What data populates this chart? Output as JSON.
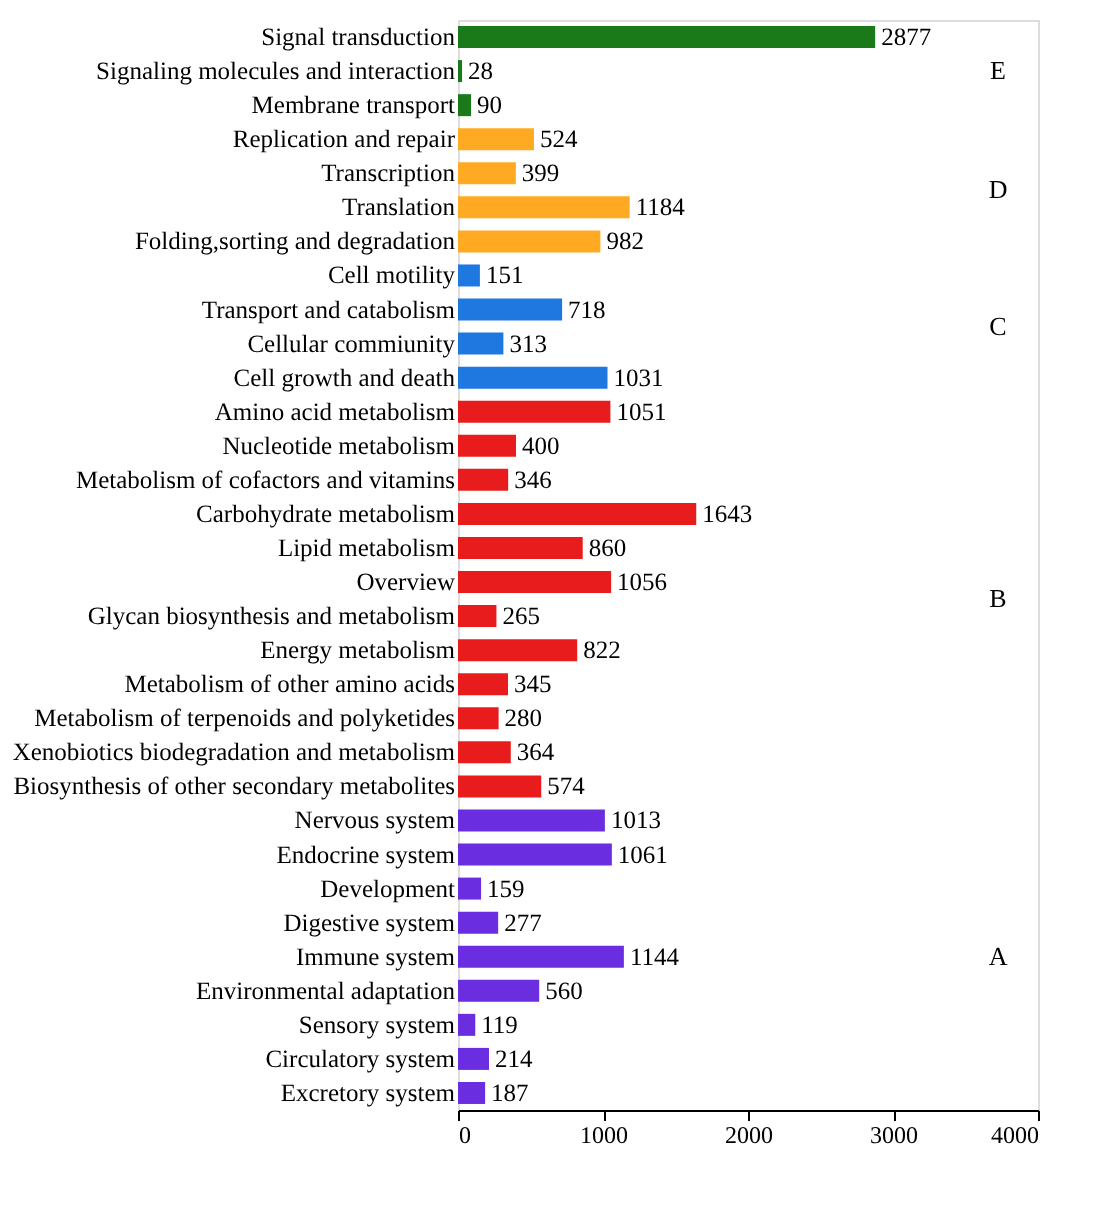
{
  "chart_data": {
    "type": "bar",
    "orientation": "horizontal",
    "categories": [
      "Signal transduction",
      "Signaling molecules and interaction",
      "Membrane transport",
      "Replication and repair",
      "Transcription",
      "Translation",
      "Folding,sorting and degradation",
      "Cell motility",
      "Transport and catabolism",
      "Cellular commiunity",
      "Cell growth and death",
      "Amino acid metabolism",
      "Nucleotide metabolism",
      "Metabolism of cofactors and vitamins",
      "Carbohydrate metabolism",
      "Lipid metabolism",
      "Overview",
      "Glycan biosynthesis and metabolism",
      "Energy metabolism",
      "Metabolism of other amino acids",
      "Metabolism of terpenoids and polyketides",
      "Xenobiotics biodegradation and metabolism",
      "Biosynthesis of other secondary metabolites",
      "Nervous system",
      "Endocrine system",
      "Development",
      "Digestive system",
      "Immune system",
      "Environmental adaptation",
      "Sensory system",
      "Circulatory system",
      "Excretory system"
    ],
    "values": [
      2877,
      28,
      90,
      524,
      399,
      1184,
      982,
      151,
      718,
      313,
      1031,
      1051,
      400,
      346,
      1643,
      860,
      1056,
      265,
      822,
      345,
      280,
      364,
      574,
      1013,
      1061,
      159,
      277,
      1144,
      560,
      119,
      214,
      187
    ],
    "colors": [
      "#1a7a1a",
      "#1a7a1a",
      "#1a7a1a",
      "#ffaa22",
      "#ffaa22",
      "#ffaa22",
      "#ffaa22",
      "#1f77e0",
      "#1f77e0",
      "#1f77e0",
      "#1f77e0",
      "#e81c1c",
      "#e81c1c",
      "#e81c1c",
      "#e81c1c",
      "#e81c1c",
      "#e81c1c",
      "#e81c1c",
      "#e81c1c",
      "#e81c1c",
      "#e81c1c",
      "#e81c1c",
      "#e81c1c",
      "#6a2ee0",
      "#6a2ee0",
      "#6a2ee0",
      "#6a2ee0",
      "#6a2ee0",
      "#6a2ee0",
      "#6a2ee0",
      "#6a2ee0",
      "#6a2ee0"
    ],
    "xlim": [
      0,
      4000
    ],
    "xticks": [
      0,
      1000,
      2000,
      3000,
      4000
    ],
    "data_labels": true,
    "grid": false,
    "annotations": [
      "E",
      "D",
      "C",
      "B",
      "A"
    ]
  }
}
